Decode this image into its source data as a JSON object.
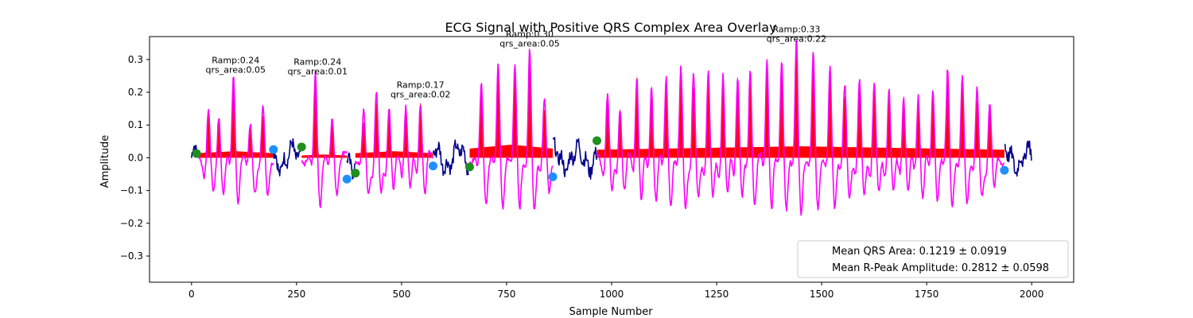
{
  "chart_data": {
    "type": "line",
    "title": "ECG Signal with Positive QRS Complex Area Overlay",
    "xlabel": "Sample Number",
    "ylabel": "Amplitude",
    "xlim": [
      -100,
      2100
    ],
    "ylim": [
      -0.38,
      0.37
    ],
    "xticks": [
      0,
      250,
      500,
      750,
      1000,
      1250,
      1500,
      1750,
      2000
    ],
    "yticks": [
      -0.3,
      -0.2,
      -0.1,
      0.0,
      0.1,
      0.2,
      0.3
    ],
    "ytick_labels": [
      "−0.3",
      "−0.2",
      "−0.1",
      "0.0",
      "0.1",
      "0.2",
      "0.3"
    ],
    "grid": false,
    "colors": {
      "baseline_signal": "#00008b",
      "qrs_signal": "#ff00ff",
      "qrs_area_fill": "#ff0000",
      "onset_marker": "#1f8f1f",
      "offset_marker": "#1e90ff"
    },
    "segments": [
      {
        "kind": "baseline",
        "start": 0,
        "end": 12
      },
      {
        "kind": "qrs",
        "start": 12,
        "end": 195,
        "beats": [
          [
            40,
            0.13
          ],
          [
            65,
            0.12
          ],
          [
            100,
            0.24
          ],
          [
            140,
            0.09
          ],
          [
            170,
            0.13
          ]
        ]
      },
      {
        "kind": "baseline",
        "start": 195,
        "end": 260
      },
      {
        "kind": "qrs",
        "start": 262,
        "end": 370,
        "beats": [
          [
            295,
            0.24
          ],
          [
            335,
            0.1
          ]
        ]
      },
      {
        "kind": "baseline",
        "start": 370,
        "end": 390
      },
      {
        "kind": "qrs",
        "start": 390,
        "end": 575,
        "beats": [
          [
            410,
            0.11
          ],
          [
            440,
            0.17
          ],
          [
            470,
            0.15
          ],
          [
            510,
            0.15
          ],
          [
            545,
            0.17
          ]
        ]
      },
      {
        "kind": "baseline",
        "start": 575,
        "end": 660
      },
      {
        "kind": "qrs",
        "start": 662,
        "end": 860,
        "beats": [
          [
            690,
            0.21
          ],
          [
            730,
            0.26
          ],
          [
            770,
            0.26
          ],
          [
            805,
            0.3
          ],
          [
            840,
            0.15
          ]
        ]
      },
      {
        "kind": "baseline",
        "start": 860,
        "end": 965
      },
      {
        "kind": "qrs",
        "start": 965,
        "end": 1935,
        "beats": [
          [
            990,
            0.18
          ],
          [
            1020,
            0.15
          ],
          [
            1060,
            0.25
          ],
          [
            1095,
            0.22
          ],
          [
            1130,
            0.23
          ],
          [
            1165,
            0.25
          ],
          [
            1195,
            0.22
          ],
          [
            1230,
            0.24
          ],
          [
            1265,
            0.24
          ],
          [
            1300,
            0.25
          ],
          [
            1330,
            0.26
          ],
          [
            1370,
            0.29
          ],
          [
            1405,
            0.28
          ],
          [
            1440,
            0.33
          ],
          [
            1480,
            0.29
          ],
          [
            1520,
            0.25
          ],
          [
            1555,
            0.19
          ],
          [
            1590,
            0.21
          ],
          [
            1625,
            0.21
          ],
          [
            1660,
            0.2
          ],
          [
            1695,
            0.19
          ],
          [
            1730,
            0.19
          ],
          [
            1765,
            0.2
          ],
          [
            1800,
            0.25
          ],
          [
            1835,
            0.22
          ],
          [
            1870,
            0.18
          ],
          [
            1900,
            0.15
          ]
        ]
      },
      {
        "kind": "baseline",
        "start": 1935,
        "end": 2000
      }
    ],
    "qrs_areas": [
      {
        "start": 12,
        "end": 195,
        "level": 0.02
      },
      {
        "start": 262,
        "end": 370,
        "level": 0.01
      },
      {
        "start": 390,
        "end": 575,
        "level": 0.02
      },
      {
        "start": 662,
        "end": 860,
        "level": 0.04
      },
      {
        "start": 965,
        "end": 1935,
        "level": 0.035
      }
    ],
    "onset_markers": [
      [
        12,
        0.013
      ],
      [
        262,
        0.033
      ],
      [
        390,
        -0.047
      ],
      [
        662,
        -0.028
      ],
      [
        965,
        0.052
      ]
    ],
    "offset_markers": [
      [
        195,
        0.025
      ],
      [
        370,
        -0.065
      ],
      [
        575,
        -0.025
      ],
      [
        860,
        -0.058
      ],
      [
        1935,
        -0.038
      ]
    ],
    "annotations": [
      {
        "x": 105,
        "y": 0.24,
        "ramp": "Ramp:0.24",
        "area": "qrs_area:0.05"
      },
      {
        "x": 300,
        "y": 0.235,
        "ramp": "Ramp:0.24",
        "area": "qrs_area:0.01"
      },
      {
        "x": 545,
        "y": 0.165,
        "ramp": "Ramp:0.17",
        "area": "qrs_area:0.02"
      },
      {
        "x": 805,
        "y": 0.32,
        "ramp": "Ramp:0.30",
        "area": "qrs_area:0.05"
      },
      {
        "x": 1440,
        "y": 0.335,
        "ramp": "Ramp:0.33",
        "area": "qrs_area:0.22"
      }
    ],
    "legend": {
      "placement": "lower-right",
      "entries": [
        "Mean QRS Area: 0.1219 ± 0.0919",
        "Mean R-Peak Amplitude: 0.2812 ± 0.0598"
      ]
    }
  }
}
